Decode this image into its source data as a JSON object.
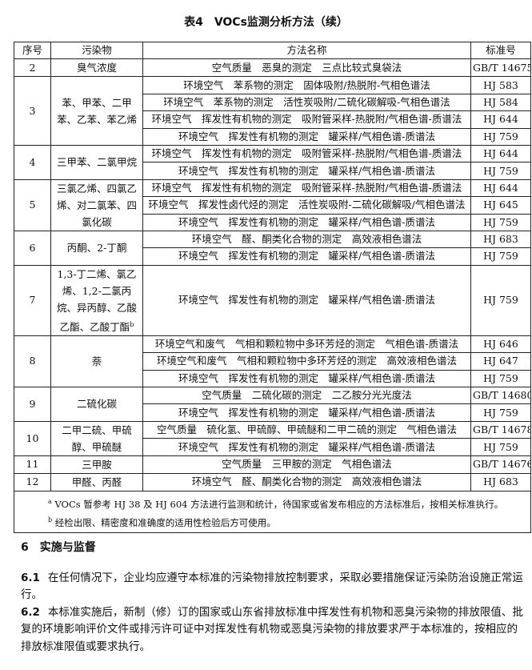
{
  "title": "表4　VOCs监测分析方法（续）",
  "headers": [
    "序号",
    "污染物",
    "方法名称",
    "标准号"
  ],
  "rows": [
    {
      "no": "2",
      "pollutant": "臭气浓度",
      "methods": [
        {
          "name": "空气质量　恶臭的测定　三点比较式臭袋法",
          "std": "GB/T 14675"
        }
      ]
    },
    {
      "no": "3",
      "pollutant": "苯、甲苯、二甲苯、乙苯、苯乙烯",
      "methods": [
        {
          "name": "环境空气　苯系物的测定　固体吸附/热脱附-气相色谱法",
          "std": "HJ 583"
        },
        {
          "name": "环境空气　苯系物的测定　活性炭吸附/二硫化碳解吸-气相色谱法",
          "std": "HJ 584"
        },
        {
          "name": "环境空气　挥发性有机物的测定　吸附管采样-热脱附/气相色谱-质谱法",
          "std": "HJ 644"
        },
        {
          "name": "环境空气　挥发性有机物的测定　罐采样/气相色谱-质谱法",
          "std": "HJ 759"
        }
      ]
    },
    {
      "no": "4",
      "pollutant": "三甲苯、二氯甲烷",
      "methods": [
        {
          "name": "环境空气　挥发性有机物的测定　吸附管采样-热脱附/气相色谱-质谱法",
          "std": "HJ 644"
        },
        {
          "name": "环境空气　挥发性有机物的测定　罐采样/气相色谱-质谱法",
          "std": "HJ 759"
        }
      ]
    },
    {
      "no": "5",
      "pollutant": "三氯乙烯、四氯乙烯、对二氯苯、四氯化碳",
      "methods": [
        {
          "name": "环境空气　挥发性有机物的测定　吸附管采样-热脱附/气相色谱-质谱法",
          "std": "HJ 644"
        },
        {
          "name": "环境空气　挥发性卤代烃的测定　活性炭吸附-二硫化碳解吸/气相色谱法",
          "std": "HJ 645"
        },
        {
          "name": "环境空气　挥发性有机物的测定　罐采样/气相色谱-质谱法",
          "std": "HJ 759"
        }
      ]
    },
    {
      "no": "6",
      "pollutant": "丙酮、2-丁酮",
      "methods": [
        {
          "name": "环境空气　醛、酮类化合物的测定　高效液相色谱法",
          "std": "HJ 683"
        },
        {
          "name": "环境空气　挥发性有机物的测定　罐采样/气相色谱-质谱法",
          "std": "HJ 759"
        }
      ]
    },
    {
      "no": "7",
      "pollutant": "1,3-丁二烯、氯乙烯、1,2-二氯丙烷、异丙醇、乙酸乙酯、乙酸丁酯",
      "sup": "b",
      "tall": true,
      "methods": [
        {
          "name": "环境空气　挥发性有机物的测定　罐采样/气相色谱-质谱法",
          "std": "HJ 759"
        }
      ]
    },
    {
      "no": "8",
      "pollutant": "萘",
      "methods": [
        {
          "name": "环境空气和废气　气相和颗粒物中多环芳烃的测定　气相色谱-质谱法",
          "std": "HJ 646"
        },
        {
          "name": "环境空气和废气　气相和颗粒物中多环芳烃的测定　高效液相色谱法",
          "std": "HJ 647"
        },
        {
          "name": "环境空气　挥发性有机物的测定　罐采样/气相色谱-质谱法",
          "std": "HJ 759"
        }
      ]
    },
    {
      "no": "9",
      "pollutant": "二硫化碳",
      "methods": [
        {
          "name": "空气质量　二硫化碳的测定　二乙胺分光光度法",
          "std": "GB/T 14680"
        },
        {
          "name": "环境空气　挥发性有机物的测定　罐采样/气相色谱-质谱法",
          "std": "HJ 759"
        }
      ]
    },
    {
      "no": "10",
      "pollutant": "二甲二硫、甲硫醇、甲硫醚",
      "methods": [
        {
          "name": "空气质量　硫化氢、甲硫醇、甲硫醚和二甲二硫的测定　气相色谱法",
          "std": "GB/T 14678"
        },
        {
          "name": "环境空气　挥发性有机物的测定　罐采样/气相色谱-质谱法",
          "std": "HJ 759"
        }
      ]
    },
    {
      "no": "11",
      "pollutant": "三甲胺",
      "methods": [
        {
          "name": "空气质量　三甲胺的测定　气相色谱法",
          "std": "GB/T 14676"
        }
      ]
    },
    {
      "no": "12",
      "pollutant": "甲醛、丙醛",
      "methods": [
        {
          "name": "环境空气　醛、酮类化合物的测定　高效液相色谱法",
          "std": "HJ 683"
        }
      ]
    }
  ],
  "notes": [
    {
      "mark": "a",
      "text": "VOCs 暂参考 HJ 38 及 HJ 604 方法进行监测和统计，待国家或省发布相应的方法标准后，按相关标准执行。"
    },
    {
      "mark": "b",
      "text": "经检出限、精密度和准确度的适用性检验后方可使用。"
    }
  ],
  "section": {
    "heading": "6　实施与监督",
    "paragraphs": [
      {
        "num": "6.1",
        "text": "在任何情况下，企业均应遵守本标准的污染物排放控制要求，采取必要措施保证污染防治设施正常运行。"
      },
      {
        "num": "6.2",
        "text": "本标准实施后，新制（修）订的国家或山东省排放标准中挥发性有机物和恶臭污染物的排放限值、批复的环境影响评价文件或排污许可证中对挥发性有机物或恶臭污染物的排放要求严于本标准的，按相应的排放标准限值或要求执行。"
      }
    ]
  }
}
